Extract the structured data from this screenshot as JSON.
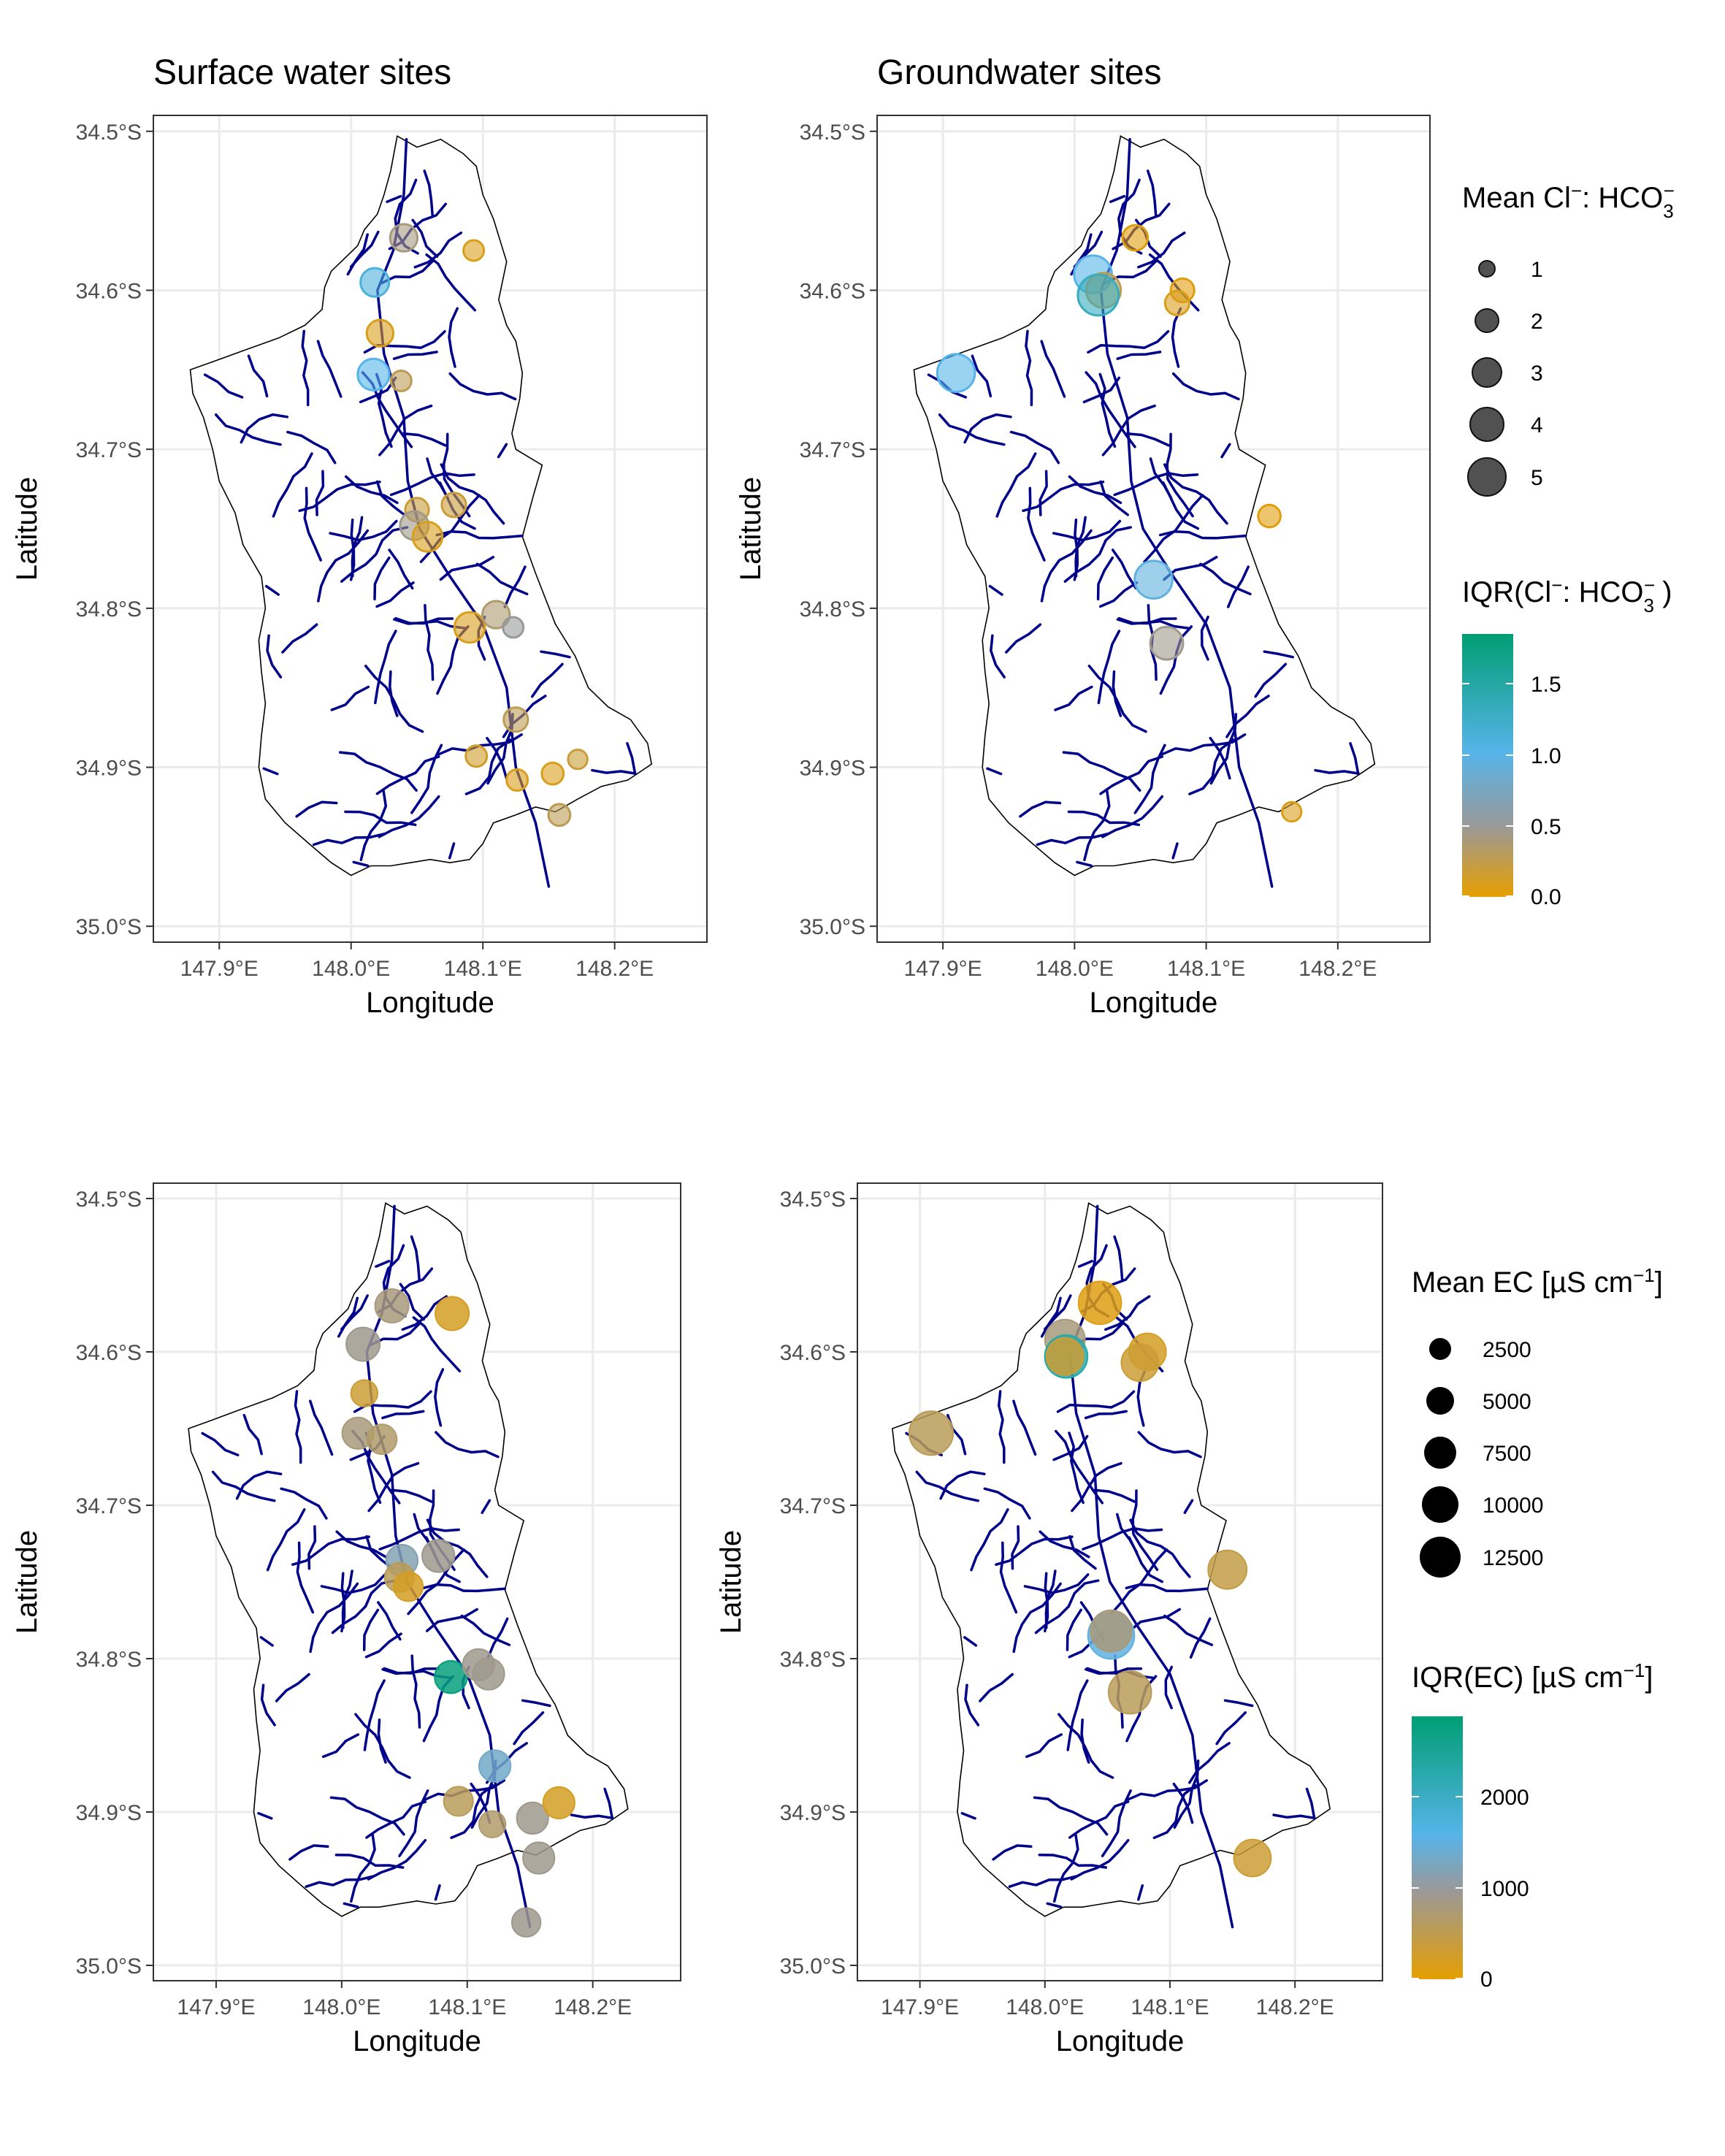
{
  "chart_data": [
    {
      "type": "scatter",
      "panel": "top-left",
      "title": "Surface water sites",
      "xlabel": "Longitude",
      "ylabel": "Latitude",
      "xlim": [
        147.85,
        148.27
      ],
      "ylim": [
        -35.01,
        -34.49
      ],
      "x_ticks": [
        147.9,
        148.0,
        148.1,
        148.2
      ],
      "x_tick_labels": [
        "147.9°E",
        "148.0°E",
        "148.1°E",
        "148.2°E"
      ],
      "y_ticks": [
        -34.5,
        -34.6,
        -34.7,
        -34.8,
        -34.9,
        -35.0
      ],
      "y_tick_labels": [
        "34.5°S",
        "34.6°S",
        "34.7°S",
        "34.8°S",
        "34.9°S",
        "35.0°S"
      ],
      "size_variable": "Mean Cl:HCO3",
      "color_variable": "IQR(Cl:HCO3)",
      "points": [
        {
          "x": 148.04,
          "y": -34.567,
          "size": 2.3,
          "color": 0.45
        },
        {
          "x": 148.093,
          "y": -34.575,
          "size": 1.2,
          "color": 0.1
        },
        {
          "x": 148.018,
          "y": -34.595,
          "size": 2.5,
          "color": 1.1
        },
        {
          "x": 148.022,
          "y": -34.627,
          "size": 2.2,
          "color": 0.1
        },
        {
          "x": 148.017,
          "y": -34.653,
          "size": 3.0,
          "color": 1.0
        },
        {
          "x": 148.038,
          "y": -34.657,
          "size": 1.2,
          "color": 0.3
        },
        {
          "x": 148.078,
          "y": -34.735,
          "size": 1.8,
          "color": 0.2
        },
        {
          "x": 148.05,
          "y": -34.738,
          "size": 1.7,
          "color": 0.2
        },
        {
          "x": 148.048,
          "y": -34.748,
          "size": 2.5,
          "color": 0.5
        },
        {
          "x": 148.058,
          "y": -34.755,
          "size": 2.7,
          "color": 0.1
        },
        {
          "x": 148.09,
          "y": -34.812,
          "size": 2.8,
          "color": 0.1
        },
        {
          "x": 148.11,
          "y": -34.804,
          "size": 2.3,
          "color": 0.4
        },
        {
          "x": 148.123,
          "y": -34.812,
          "size": 1.2,
          "color": 0.55
        },
        {
          "x": 148.125,
          "y": -34.87,
          "size": 1.8,
          "color": 0.3
        },
        {
          "x": 148.095,
          "y": -34.893,
          "size": 1.3,
          "color": 0.15
        },
        {
          "x": 148.126,
          "y": -34.908,
          "size": 1.3,
          "color": 0.1
        },
        {
          "x": 148.153,
          "y": -34.904,
          "size": 1.4,
          "color": 0.1
        },
        {
          "x": 148.172,
          "y": -34.895,
          "size": 1.0,
          "color": 0.2
        },
        {
          "x": 148.158,
          "y": -34.93,
          "size": 1.4,
          "color": 0.3
        }
      ]
    },
    {
      "type": "scatter",
      "panel": "top-right",
      "title": "Groundwater sites",
      "xlabel": "Longitude",
      "ylabel": "Latitude",
      "xlim": [
        147.85,
        148.27
      ],
      "ylim": [
        -35.01,
        -34.49
      ],
      "x_ticks": [
        147.9,
        148.0,
        148.1,
        148.2
      ],
      "x_tick_labels": [
        "147.9°E",
        "148.0°E",
        "148.1°E",
        "148.2°E"
      ],
      "y_ticks": [
        -34.5,
        -34.6,
        -34.7,
        -34.8,
        -34.9,
        -35.0
      ],
      "y_tick_labels": [
        "34.5°S",
        "34.6°S",
        "34.7°S",
        "34.8°S",
        "34.9°S",
        "35.0°S"
      ],
      "size_variable": "Mean Cl:HCO3",
      "color_variable": "IQR(Cl:HCO3)",
      "points": [
        {
          "x": 148.046,
          "y": -34.567,
          "size": 2.0,
          "color": 0.05
        },
        {
          "x": 148.014,
          "y": -34.59,
          "size": 4.0,
          "color": 1.0
        },
        {
          "x": 148.022,
          "y": -34.6,
          "size": 3.5,
          "color": 0.3
        },
        {
          "x": 148.018,
          "y": -34.603,
          "size": 4.5,
          "color": 1.3
        },
        {
          "x": 148.082,
          "y": -34.6,
          "size": 1.7,
          "color": 0.05
        },
        {
          "x": 148.078,
          "y": -34.608,
          "size": 1.8,
          "color": 0.1
        },
        {
          "x": 147.91,
          "y": -34.652,
          "size": 4.0,
          "color": 1.0
        },
        {
          "x": 148.148,
          "y": -34.742,
          "size": 1.5,
          "color": 0.05
        },
        {
          "x": 148.06,
          "y": -34.782,
          "size": 4.0,
          "color": 0.95
        },
        {
          "x": 148.07,
          "y": -34.822,
          "size": 3.2,
          "color": 0.5
        },
        {
          "x": 148.165,
          "y": -34.928,
          "size": 1.0,
          "color": 0.1
        }
      ]
    },
    {
      "type": "scatter",
      "panel": "bottom-left",
      "title": "",
      "xlabel": "Longitude",
      "ylabel": "Latitude",
      "xlim": [
        147.85,
        148.27
      ],
      "ylim": [
        -35.01,
        -34.49
      ],
      "x_ticks": [
        147.9,
        148.0,
        148.1,
        148.2
      ],
      "x_tick_labels": [
        "147.9°E",
        "148.0°E",
        "148.1°E",
        "148.2°E"
      ],
      "y_ticks": [
        -34.5,
        -34.6,
        -34.7,
        -34.8,
        -34.9,
        -35.0
      ],
      "y_tick_labels": [
        "34.5°S",
        "34.6°S",
        "34.7°S",
        "34.8°S",
        "34.9°S",
        "35.0°S"
      ],
      "size_variable": "Mean EC",
      "color_variable": "IQR(EC)",
      "points": [
        {
          "x": 148.04,
          "y": -34.57,
          "size": 2500,
          "color": 700
        },
        {
          "x": 148.088,
          "y": -34.575,
          "size": 2500,
          "color": 200
        },
        {
          "x": 148.017,
          "y": -34.595,
          "size": 2500,
          "color": 800
        },
        {
          "x": 148.018,
          "y": -34.627,
          "size": 1000,
          "color": 300
        },
        {
          "x": 148.013,
          "y": -34.653,
          "size": 2000,
          "color": 700
        },
        {
          "x": 148.032,
          "y": -34.657,
          "size": 1600,
          "color": 600
        },
        {
          "x": 148.048,
          "y": -34.736,
          "size": 2000,
          "color": 1100
        },
        {
          "x": 148.077,
          "y": -34.733,
          "size": 2200,
          "color": 800
        },
        {
          "x": 148.046,
          "y": -34.747,
          "size": 1500,
          "color": 500
        },
        {
          "x": 148.053,
          "y": -34.753,
          "size": 1500,
          "color": 200
        },
        {
          "x": 148.087,
          "y": -34.812,
          "size": 2200,
          "color": 2800
        },
        {
          "x": 148.109,
          "y": -34.804,
          "size": 2000,
          "color": 800
        },
        {
          "x": 148.117,
          "y": -34.81,
          "size": 2000,
          "color": 800
        },
        {
          "x": 148.122,
          "y": -34.87,
          "size": 2000,
          "color": 1300
        },
        {
          "x": 148.093,
          "y": -34.893,
          "size": 1500,
          "color": 500
        },
        {
          "x": 148.12,
          "y": -34.908,
          "size": 1000,
          "color": 600
        },
        {
          "x": 148.152,
          "y": -34.904,
          "size": 2000,
          "color": 800
        },
        {
          "x": 148.173,
          "y": -34.894,
          "size": 2000,
          "color": 200
        },
        {
          "x": 148.157,
          "y": -34.93,
          "size": 2000,
          "color": 800
        },
        {
          "x": 148.147,
          "y": -34.972,
          "size": 1400,
          "color": 800
        }
      ]
    },
    {
      "type": "scatter",
      "panel": "bottom-right",
      "title": "",
      "xlabel": "Longitude",
      "ylabel": "Latitude",
      "xlim": [
        147.85,
        148.27
      ],
      "ylim": [
        -35.01,
        -34.49
      ],
      "x_ticks": [
        147.9,
        148.0,
        148.1,
        148.2
      ],
      "x_tick_labels": [
        "147.9°E",
        "148.0°E",
        "148.1°E",
        "148.2°E"
      ],
      "y_ticks": [
        -34.5,
        -34.6,
        -34.7,
        -34.8,
        -34.9,
        -35.0
      ],
      "y_tick_labels": [
        "34.5°S",
        "34.6°S",
        "34.7°S",
        "34.8°S",
        "34.9°S",
        "35.0°S"
      ],
      "size_variable": "Mean EC",
      "color_variable": "IQR(EC)",
      "points": [
        {
          "x": 148.044,
          "y": -34.568,
          "size": 5500,
          "color": 100
        },
        {
          "x": 148.016,
          "y": -34.592,
          "size": 4500,
          "color": 700
        },
        {
          "x": 148.017,
          "y": -34.603,
          "size": 5500,
          "color": 2300
        },
        {
          "x": 148.016,
          "y": -34.603,
          "size": 3500,
          "color": 300
        },
        {
          "x": 148.082,
          "y": -34.6,
          "size": 3500,
          "color": 200
        },
        {
          "x": 148.076,
          "y": -34.607,
          "size": 3500,
          "color": 300
        },
        {
          "x": 147.909,
          "y": -34.653,
          "size": 6000,
          "color": 500
        },
        {
          "x": 148.146,
          "y": -34.742,
          "size": 4000,
          "color": 400
        },
        {
          "x": 148.053,
          "y": -34.785,
          "size": 7000,
          "color": 1500
        },
        {
          "x": 148.053,
          "y": -34.782,
          "size": 5000,
          "color": 700
        },
        {
          "x": 148.068,
          "y": -34.822,
          "size": 5500,
          "color": 500
        },
        {
          "x": 148.166,
          "y": -34.93,
          "size": 3500,
          "color": 300
        }
      ]
    }
  ],
  "legends": {
    "top_size": {
      "title_main": "Mean Cl",
      "title_sup": "−",
      "title_sep": ": HCO",
      "title_sub": "3",
      "title_sup2": "−",
      "labels": [
        "1",
        "2",
        "3",
        "4",
        "5"
      ]
    },
    "top_color": {
      "title_main": "IQR(Cl",
      "title_sup": "−",
      "title_sep": ": HCO",
      "title_sub": "3",
      "title_sup2": "−",
      "title_end": ")",
      "labels": [
        "1.5",
        "1.0",
        "0.5",
        "0.0"
      ],
      "range": [
        0,
        1.82
      ]
    },
    "bottom_size": {
      "title_main": "Mean EC  [µS cm",
      "title_sup": "−1",
      "title_end": "]",
      "labels": [
        "2500",
        "5000",
        "7500",
        "10000",
        "12500"
      ]
    },
    "bottom_color": {
      "title_main": "IQR(EC) [µS cm",
      "title_sup": "−1",
      "title_end": "]",
      "labels": [
        "2000",
        "1000",
        "0"
      ],
      "range": [
        0,
        2900
      ]
    },
    "colors": {
      "low": "#E69F00",
      "mid": "#999999",
      "mid_high": "#56B4E9",
      "high": "#009E73",
      "river": "#00008B",
      "catchment_outline": "#000000",
      "grid": "#EBEBEB"
    }
  }
}
